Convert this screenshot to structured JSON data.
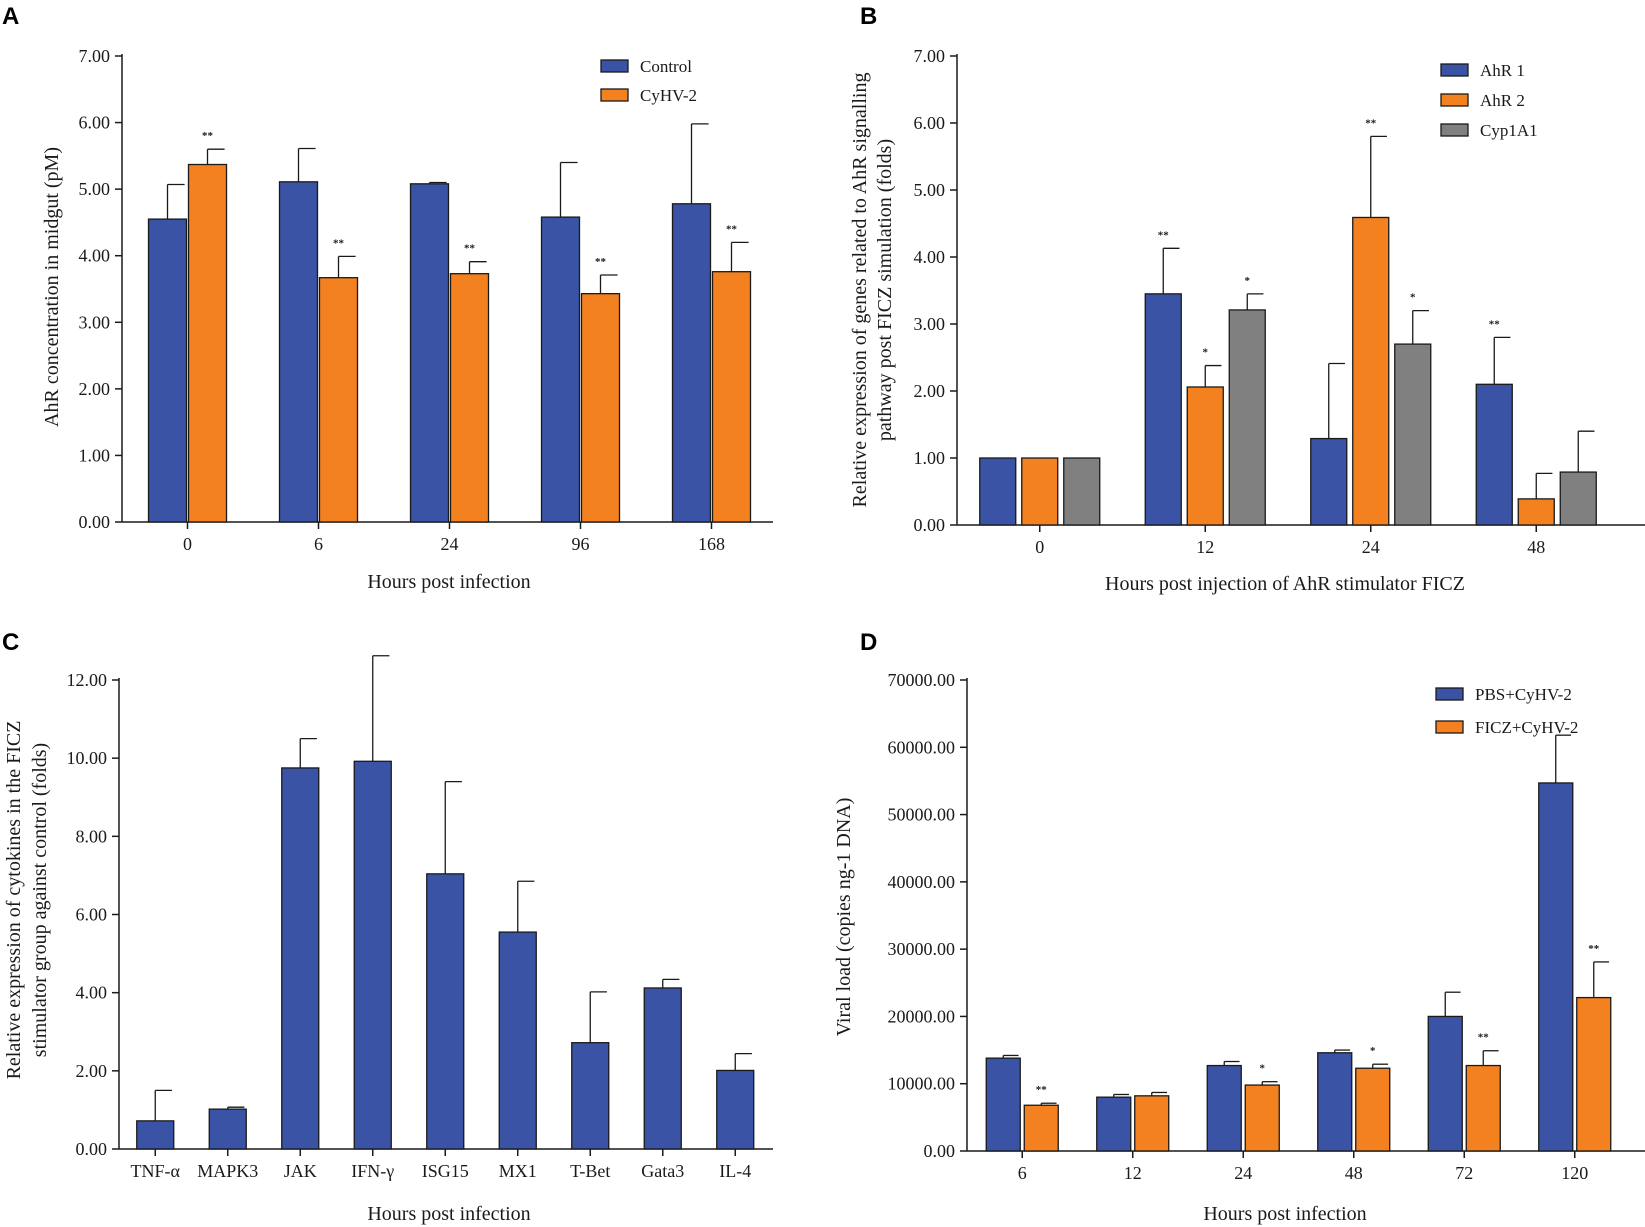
{
  "colors": {
    "blue": "#3a53a4",
    "orange": "#f3811f",
    "gray": "#808080",
    "axis": "#1a1a1a"
  },
  "chart_data": [
    {
      "panel": "A",
      "type": "bar",
      "xlabel": "Hours post infection",
      "ylabel": "AhR concentration in midgut (pM)",
      "ylim": [
        0,
        7
      ],
      "yticks": [
        "0.00",
        "1.00",
        "2.00",
        "3.00",
        "4.00",
        "5.00",
        "6.00",
        "7.00"
      ],
      "categories": [
        "0",
        "6",
        "24",
        "96",
        "168"
      ],
      "legend_position": "top-right",
      "series": [
        {
          "name": "Control",
          "color": "#3a53a4",
          "values": [
            4.55,
            5.11,
            5.08,
            4.58,
            4.78
          ],
          "errors": [
            0.52,
            0.5,
            0.02,
            0.82,
            1.2
          ],
          "sig": [
            "",
            "",
            "",
            "",
            ""
          ]
        },
        {
          "name": "CyHV-2",
          "color": "#f3811f",
          "values": [
            5.37,
            3.67,
            3.73,
            3.43,
            3.76
          ],
          "errors": [
            0.23,
            0.32,
            0.18,
            0.28,
            0.44
          ],
          "sig": [
            "**",
            "**",
            "**",
            "**",
            "**"
          ]
        }
      ]
    },
    {
      "panel": "B",
      "type": "bar",
      "xlabel": "Hours post injection of AhR stimulator FICZ",
      "ylabel_lines": [
        "Relative expression of genes related to AhR signalling",
        "pathway post FICZ simulation (folds)"
      ],
      "ylim": [
        0,
        7
      ],
      "yticks": [
        "0.00",
        "1.00",
        "2.00",
        "3.00",
        "4.00",
        "5.00",
        "6.00",
        "7.00"
      ],
      "categories": [
        "0",
        "12",
        "24",
        "48"
      ],
      "legend_position": "top-right",
      "series": [
        {
          "name": "AhR 1",
          "color": "#3a53a4",
          "values": [
            1.0,
            3.45,
            1.29,
            2.1
          ],
          "errors": [
            0,
            0.68,
            1.12,
            0.7
          ],
          "sig": [
            "",
            "**",
            "",
            "**"
          ]
        },
        {
          "name": "AhR 2",
          "color": "#f3811f",
          "values": [
            1.0,
            2.06,
            4.59,
            0.39
          ],
          "errors": [
            0,
            0.32,
            1.21,
            0.38
          ],
          "sig": [
            "",
            "*",
            "**",
            ""
          ]
        },
        {
          "name": "Cyp1A1",
          "color": "#808080",
          "values": [
            1.0,
            3.21,
            2.7,
            0.79
          ],
          "errors": [
            0,
            0.24,
            0.5,
            0.61
          ],
          "sig": [
            "",
            "*",
            "*",
            ""
          ]
        }
      ]
    },
    {
      "panel": "C",
      "type": "bar",
      "xlabel": "Hours post infection",
      "ylabel_lines": [
        "Relative expression of cytokines in the FICZ",
        "stimulator group against control (folds)"
      ],
      "ylim": [
        0,
        12
      ],
      "yticks": [
        "0.00",
        "2.00",
        "4.00",
        "6.00",
        "8.00",
        "10.00",
        "12.00"
      ],
      "categories": [
        "TNF-α",
        "MAPK3",
        "JAK",
        "IFN-γ",
        "ISG15",
        "MX1",
        "T-Bet",
        "Gata3",
        "IL-4"
      ],
      "series": [
        {
          "name": "FICZ",
          "color": "#3a53a4",
          "values": [
            0.72,
            1.02,
            9.75,
            9.92,
            7.04,
            5.55,
            2.72,
            4.12,
            2.01
          ],
          "errors": [
            0.78,
            0.05,
            0.75,
            2.7,
            2.36,
            1.3,
            1.3,
            0.22,
            0.43
          ],
          "sig": [
            "",
            "",
            "",
            "",
            "",
            "",
            "",
            "",
            ""
          ]
        }
      ]
    },
    {
      "panel": "D",
      "type": "bar",
      "xlabel": "Hours post infection",
      "ylabel": "Viral load (copies ng-1 DNA)",
      "ylim": [
        0,
        70000
      ],
      "yticks": [
        "0.00",
        "10000.00",
        "20000.00",
        "30000.00",
        "40000.00",
        "50000.00",
        "60000.00",
        "70000.00"
      ],
      "categories": [
        "6",
        "12",
        "24",
        "48",
        "72",
        "120"
      ],
      "legend_position": "top-right",
      "series": [
        {
          "name": "PBS+CyHV-2",
          "color": "#3a53a4",
          "values": [
            13800,
            8000,
            12700,
            14600,
            20000,
            54700
          ],
          "errors": [
            400,
            400,
            600,
            400,
            3600,
            7100
          ],
          "sig": [
            "",
            "",
            "",
            "",
            "",
            ""
          ]
        },
        {
          "name": "FICZ+CyHV-2",
          "color": "#f3811f",
          "values": [
            6800,
            8200,
            9800,
            12300,
            12700,
            22800
          ],
          "errors": [
            300,
            500,
            500,
            600,
            2200,
            5300
          ],
          "sig": [
            "**",
            "",
            "*",
            "*",
            "**",
            "**"
          ]
        }
      ]
    }
  ]
}
